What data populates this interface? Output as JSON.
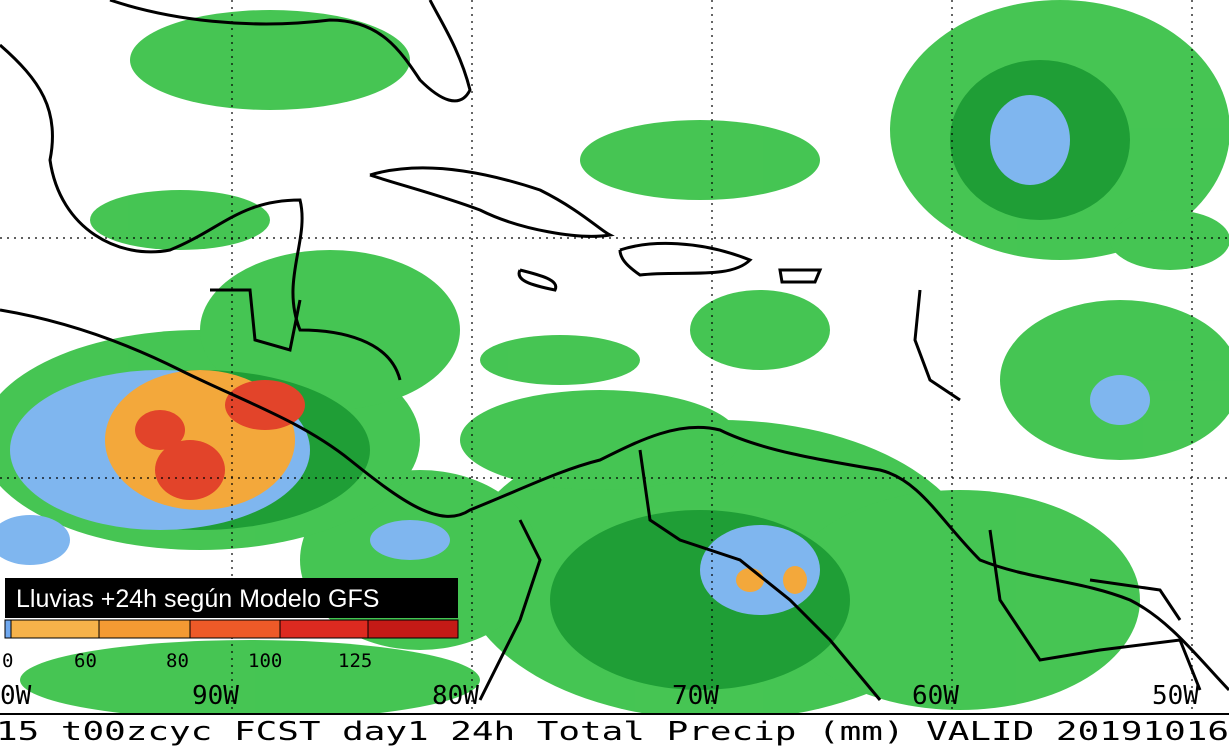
{
  "overlay_title": "Lluvias +24h según Modelo GFS",
  "legend": {
    "labels": [
      "0",
      "60",
      "80",
      "100",
      "125"
    ]
  },
  "longitude_labels": [
    "0W",
    "90W",
    "80W",
    "70W",
    "60W",
    "50W"
  ],
  "footer": "15 t00zcyc FCST day1 24h Total Precip (mm) VALID 20191016"
}
